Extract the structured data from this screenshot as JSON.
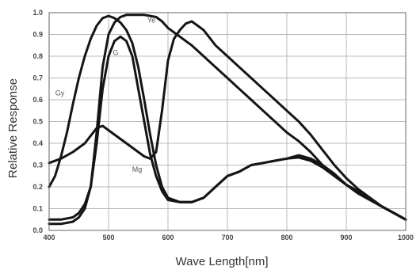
{
  "chart_data": {
    "type": "line",
    "xlabel": "Wave Length[nm]",
    "ylabel": "Relative Response",
    "xlim": [
      400,
      1000
    ],
    "ylim": [
      0,
      1.0
    ],
    "x_ticks": [
      "400",
      "500",
      "600",
      "700",
      "800",
      "900",
      "1000"
    ],
    "y_ticks": [
      "0.0",
      "0.1",
      "0.2",
      "0.3",
      "0.4",
      "0.5",
      "0.6",
      "0.7",
      "0.8",
      "0.9",
      "1.0"
    ],
    "grid": true,
    "legend": "inline labels",
    "line_color": "#151515",
    "series": [
      {
        "name": "Gy",
        "x": [
          400,
          410,
          420,
          430,
          440,
          450,
          460,
          470,
          480,
          490,
          500,
          510,
          520,
          530,
          540,
          550,
          560,
          570,
          580,
          590,
          600,
          620,
          640,
          660,
          680,
          700,
          720,
          740,
          760,
          780,
          800,
          820,
          840,
          860,
          880,
          900,
          920,
          940,
          960,
          980,
          1000
        ],
        "y": [
          0.2,
          0.25,
          0.34,
          0.45,
          0.58,
          0.7,
          0.8,
          0.88,
          0.94,
          0.975,
          0.985,
          0.975,
          0.955,
          0.92,
          0.86,
          0.75,
          0.6,
          0.44,
          0.3,
          0.2,
          0.15,
          0.13,
          0.13,
          0.15,
          0.2,
          0.25,
          0.27,
          0.3,
          0.31,
          0.32,
          0.33,
          0.345,
          0.33,
          0.3,
          0.26,
          0.21,
          0.18,
          0.14,
          0.11,
          0.08,
          0.05
        ]
      },
      {
        "name": "G",
        "x": [
          400,
          420,
          440,
          450,
          460,
          470,
          480,
          490,
          500,
          510,
          520,
          530,
          540,
          550,
          560,
          570,
          580,
          590,
          600,
          620,
          640,
          660,
          680,
          700,
          720,
          740,
          760,
          780,
          800,
          820,
          840,
          860,
          880,
          900,
          920,
          940,
          960,
          980,
          1000
        ],
        "y": [
          0.05,
          0.05,
          0.06,
          0.08,
          0.12,
          0.2,
          0.4,
          0.65,
          0.8,
          0.87,
          0.89,
          0.87,
          0.8,
          0.65,
          0.5,
          0.35,
          0.25,
          0.18,
          0.14,
          0.13,
          0.13,
          0.15,
          0.2,
          0.25,
          0.27,
          0.3,
          0.31,
          0.32,
          0.33,
          0.335,
          0.32,
          0.29,
          0.25,
          0.21,
          0.17,
          0.14,
          0.11,
          0.08,
          0.05
        ]
      },
      {
        "name": "Ye",
        "x": [
          400,
          420,
          440,
          450,
          460,
          470,
          480,
          490,
          500,
          510,
          520,
          530,
          540,
          550,
          560,
          570,
          580,
          590,
          600,
          620,
          640,
          660,
          680,
          700,
          720,
          740,
          760,
          780,
          800,
          820,
          840,
          860,
          880,
          900,
          920,
          940,
          960,
          980,
          1000
        ],
        "y": [
          0.03,
          0.03,
          0.04,
          0.06,
          0.1,
          0.2,
          0.45,
          0.75,
          0.9,
          0.955,
          0.98,
          0.99,
          0.99,
          0.99,
          0.99,
          0.985,
          0.98,
          0.96,
          0.93,
          0.89,
          0.85,
          0.8,
          0.75,
          0.7,
          0.65,
          0.6,
          0.55,
          0.5,
          0.45,
          0.41,
          0.36,
          0.3,
          0.25,
          0.21,
          0.17,
          0.14,
          0.11,
          0.08,
          0.05
        ]
      },
      {
        "name": "Mg",
        "x": [
          400,
          420,
          440,
          460,
          480,
          490,
          500,
          520,
          540,
          560,
          570,
          580,
          590,
          600,
          610,
          620,
          630,
          640,
          660,
          680,
          700,
          720,
          740,
          760,
          780,
          800,
          820,
          840,
          860,
          880,
          900,
          920,
          940,
          960,
          980,
          1000
        ],
        "y": [
          0.31,
          0.33,
          0.36,
          0.4,
          0.47,
          0.48,
          0.46,
          0.42,
          0.38,
          0.34,
          0.33,
          0.36,
          0.55,
          0.78,
          0.88,
          0.92,
          0.95,
          0.96,
          0.92,
          0.85,
          0.8,
          0.75,
          0.7,
          0.65,
          0.6,
          0.55,
          0.5,
          0.44,
          0.37,
          0.3,
          0.24,
          0.19,
          0.15,
          0.11,
          0.08,
          0.05
        ]
      }
    ]
  }
}
